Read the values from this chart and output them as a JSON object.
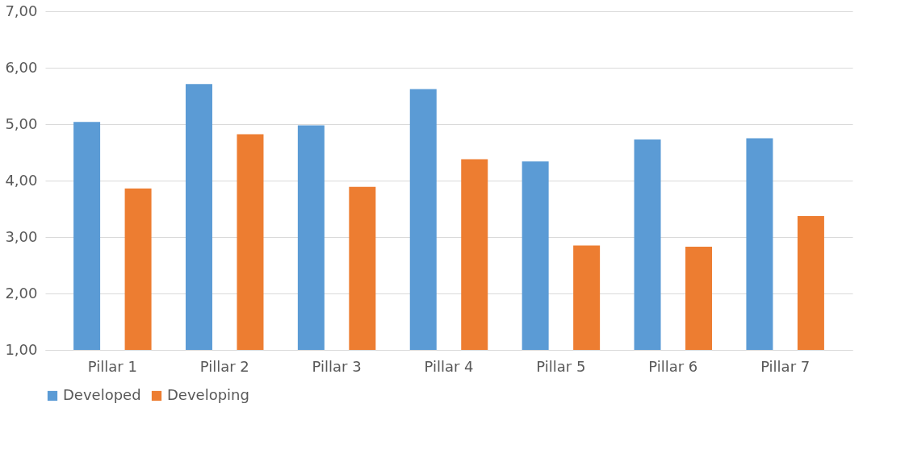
{
  "chart_data": {
    "type": "bar",
    "categories": [
      "Pillar 1",
      "Pillar 2",
      "Pillar 3",
      "Pillar 4",
      "Pillar 5",
      "Pillar 6",
      "Pillar 7"
    ],
    "series": [
      {
        "name": "Developed",
        "color": "#5b9bd5",
        "values": [
          5.04,
          5.71,
          4.98,
          5.62,
          4.34,
          4.73,
          4.75
        ]
      },
      {
        "name": "Developing",
        "color": "#ed7d31",
        "values": [
          3.86,
          4.82,
          3.89,
          4.38,
          2.85,
          2.83,
          3.37
        ]
      }
    ],
    "ylim": [
      1,
      7
    ],
    "yticks": [
      {
        "value": 1,
        "label": "1,00"
      },
      {
        "value": 2,
        "label": "2,00"
      },
      {
        "value": 3,
        "label": "3,00"
      },
      {
        "value": 4,
        "label": "4,00"
      },
      {
        "value": 5,
        "label": "5,00"
      },
      {
        "value": 6,
        "label": "6,00"
      },
      {
        "value": 7,
        "label": "7,00"
      }
    ],
    "grid": "y",
    "legend": "bottom"
  }
}
